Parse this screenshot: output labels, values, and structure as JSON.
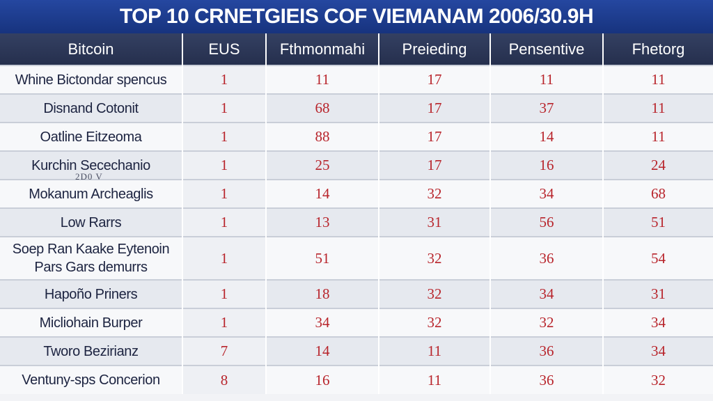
{
  "title": "TOP 10 CRNETGIEIS COF VIEMANAM 2006/30.9H",
  "columns": [
    "Bitcoin",
    "EUS",
    "Fthmonmahi",
    "Preieding",
    "Pensentive",
    "Fhetorg"
  ],
  "rows": [
    {
      "label": [
        "Whine Bictondar spencus"
      ],
      "values": [
        "1",
        "11",
        "17",
        "11",
        "11"
      ]
    },
    {
      "label": [
        "Disnand Cotonit"
      ],
      "values": [
        "1",
        "68",
        "17",
        "37",
        "11"
      ]
    },
    {
      "label": [
        "Oatline Eitzeoma"
      ],
      "values": [
        "1",
        "88",
        "17",
        "14",
        "11"
      ]
    },
    {
      "label": [
        "Kurchin Secechanio"
      ],
      "values": [
        "1",
        "25",
        "17",
        "16",
        "24"
      ]
    },
    {
      "label": [
        "Mokanum Archeaglis"
      ],
      "values": [
        "1",
        "14",
        "32",
        "34",
        "68"
      ]
    },
    {
      "label": [
        "Low Rarrs"
      ],
      "values": [
        "1",
        "13",
        "31",
        "56",
        "51"
      ]
    },
    {
      "label": [
        "Soep Ran Kaake Eytenoin",
        "Pars Gars demurrs"
      ],
      "values": [
        "1",
        "51",
        "32",
        "36",
        "54"
      ]
    },
    {
      "label": [
        "Hapoño Priners"
      ],
      "values": [
        "1",
        "18",
        "32",
        "34",
        "31"
      ]
    },
    {
      "label": [
        "Micliohain Burper"
      ],
      "values": [
        "1",
        "34",
        "32",
        "32",
        "34"
      ]
    },
    {
      "label": [
        "Tworo Bezirianz"
      ],
      "values": [
        "7",
        "14",
        "11",
        "36",
        "34"
      ]
    },
    {
      "label": [
        "Ventuny-sps Concerion"
      ],
      "values": [
        "8",
        "16",
        "11",
        "36",
        "32"
      ]
    }
  ],
  "overlay_text": "2D0 V",
  "colors": {
    "title_bg": "#1e3d8f",
    "header_bg": "#2b3656",
    "value_text": "#b8242b",
    "label_text": "#1c2340"
  }
}
